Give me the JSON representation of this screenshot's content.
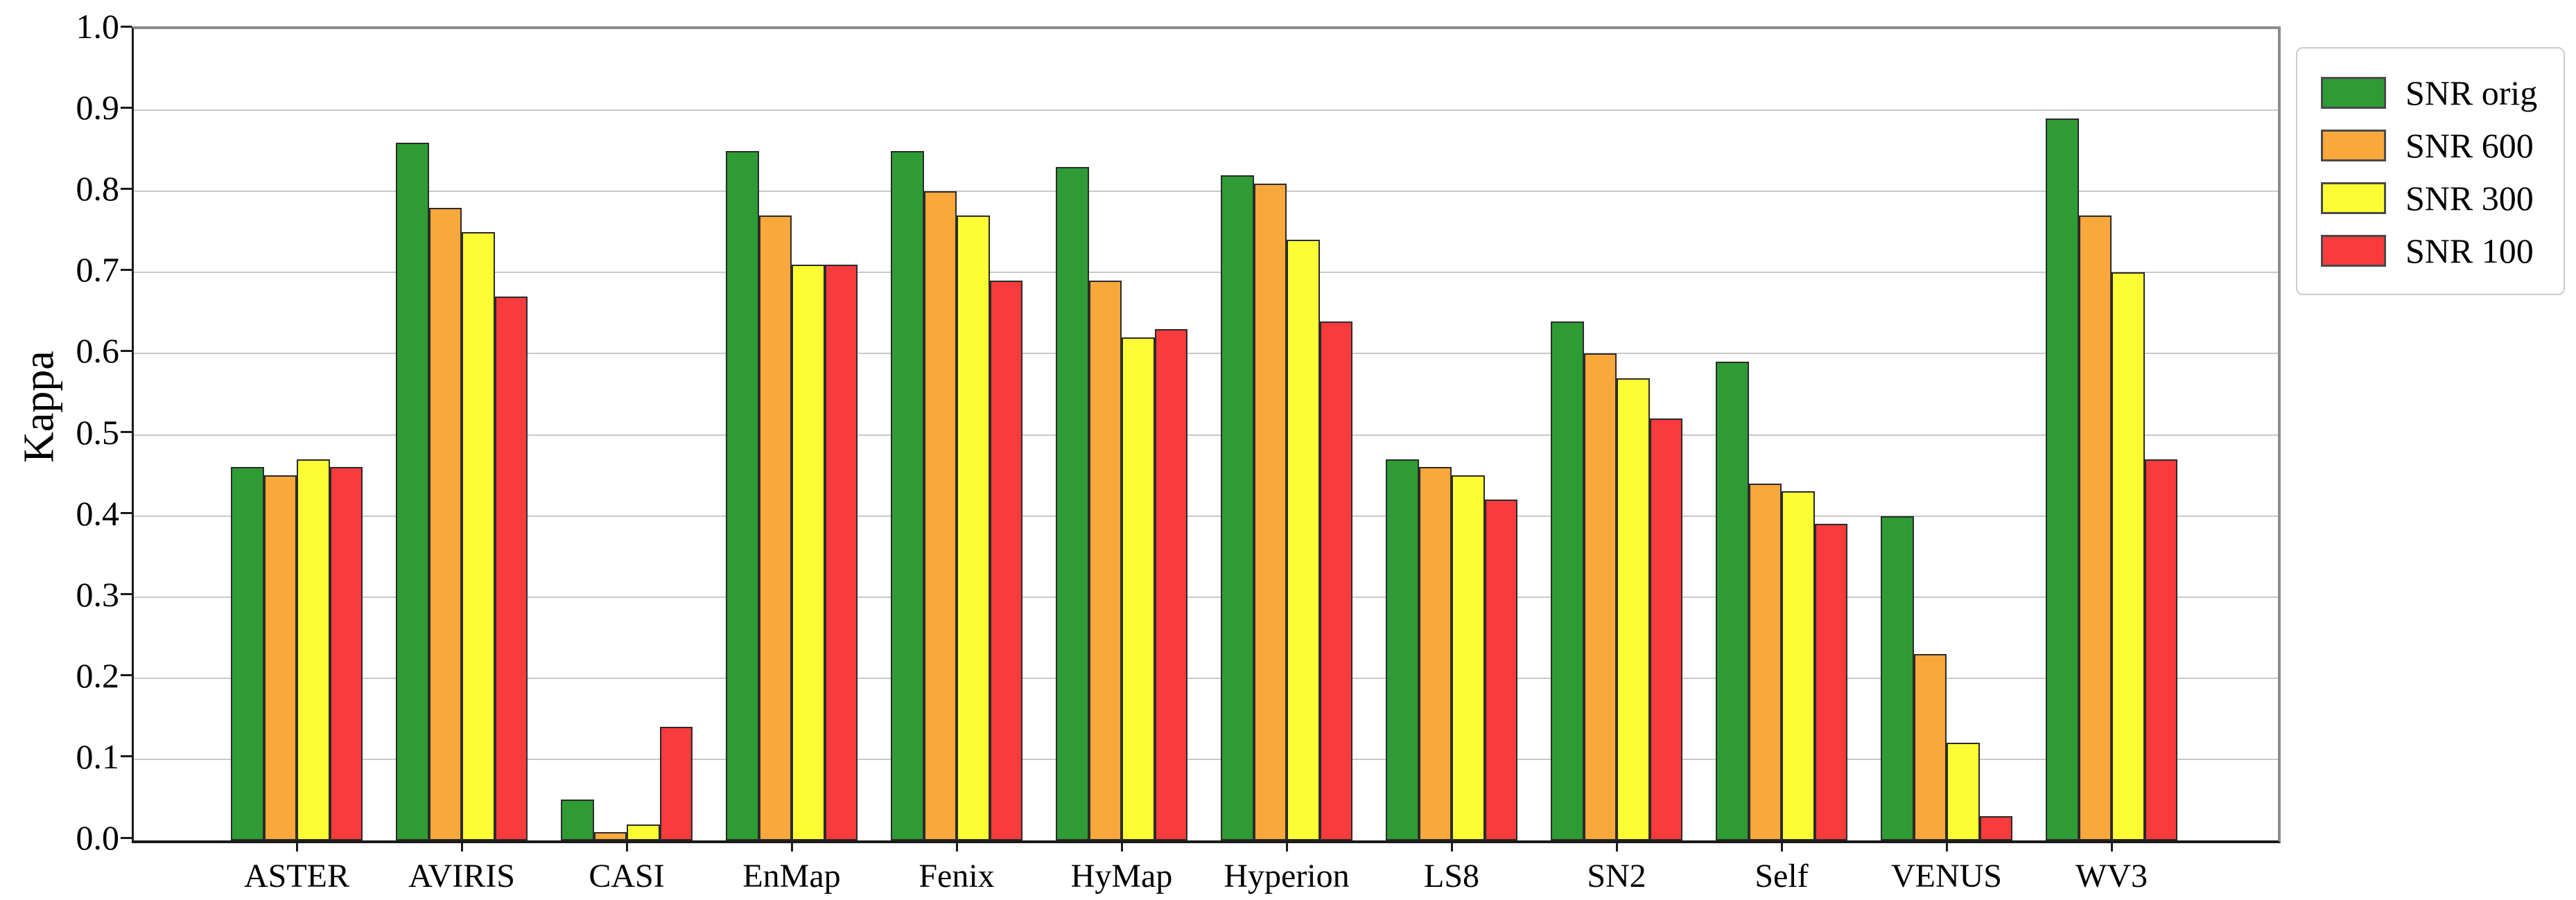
{
  "figure": {
    "y_axis_title": "Kappa"
  },
  "chart_data": {
    "type": "bar",
    "title": "",
    "xlabel": "",
    "ylabel": "Kappa",
    "ylim": [
      0.0,
      1.0
    ],
    "ytick_step": 0.1,
    "ytick_labels": [
      "0.0",
      "0.1",
      "0.2",
      "0.3",
      "0.4",
      "0.5",
      "0.6",
      "0.7",
      "0.8",
      "0.9",
      "1.0"
    ],
    "grid": true,
    "gridline_color": "#c9c9c9",
    "bar_edge_color": "#2b2b2b",
    "legend_position": "outside top-right",
    "categories": [
      "ASTER",
      "AVIRIS",
      "CASI",
      "EnMap",
      "Fenix",
      "HyMap",
      "Hyperion",
      "LS8",
      "SN2",
      "Self",
      "VENUS",
      "WV3"
    ],
    "series": [
      {
        "name": "SNR orig",
        "color": "#2e9b35",
        "values": [
          0.46,
          0.86,
          0.05,
          0.85,
          0.85,
          0.83,
          0.82,
          0.47,
          0.64,
          0.59,
          0.4,
          0.89
        ]
      },
      {
        "name": "SNR 600",
        "color": "#f9a83c",
        "values": [
          0.45,
          0.78,
          0.01,
          0.77,
          0.8,
          0.69,
          0.81,
          0.46,
          0.6,
          0.44,
          0.23,
          0.77
        ]
      },
      {
        "name": "SNR 300",
        "color": "#fdfd35",
        "values": [
          0.47,
          0.75,
          0.02,
          0.71,
          0.77,
          0.62,
          0.74,
          0.45,
          0.57,
          0.43,
          0.12,
          0.7
        ]
      },
      {
        "name": "SNR 100",
        "color": "#f83b3c",
        "values": [
          0.46,
          0.67,
          0.14,
          0.71,
          0.69,
          0.63,
          0.64,
          0.42,
          0.52,
          0.39,
          0.03,
          0.47
        ]
      }
    ]
  }
}
